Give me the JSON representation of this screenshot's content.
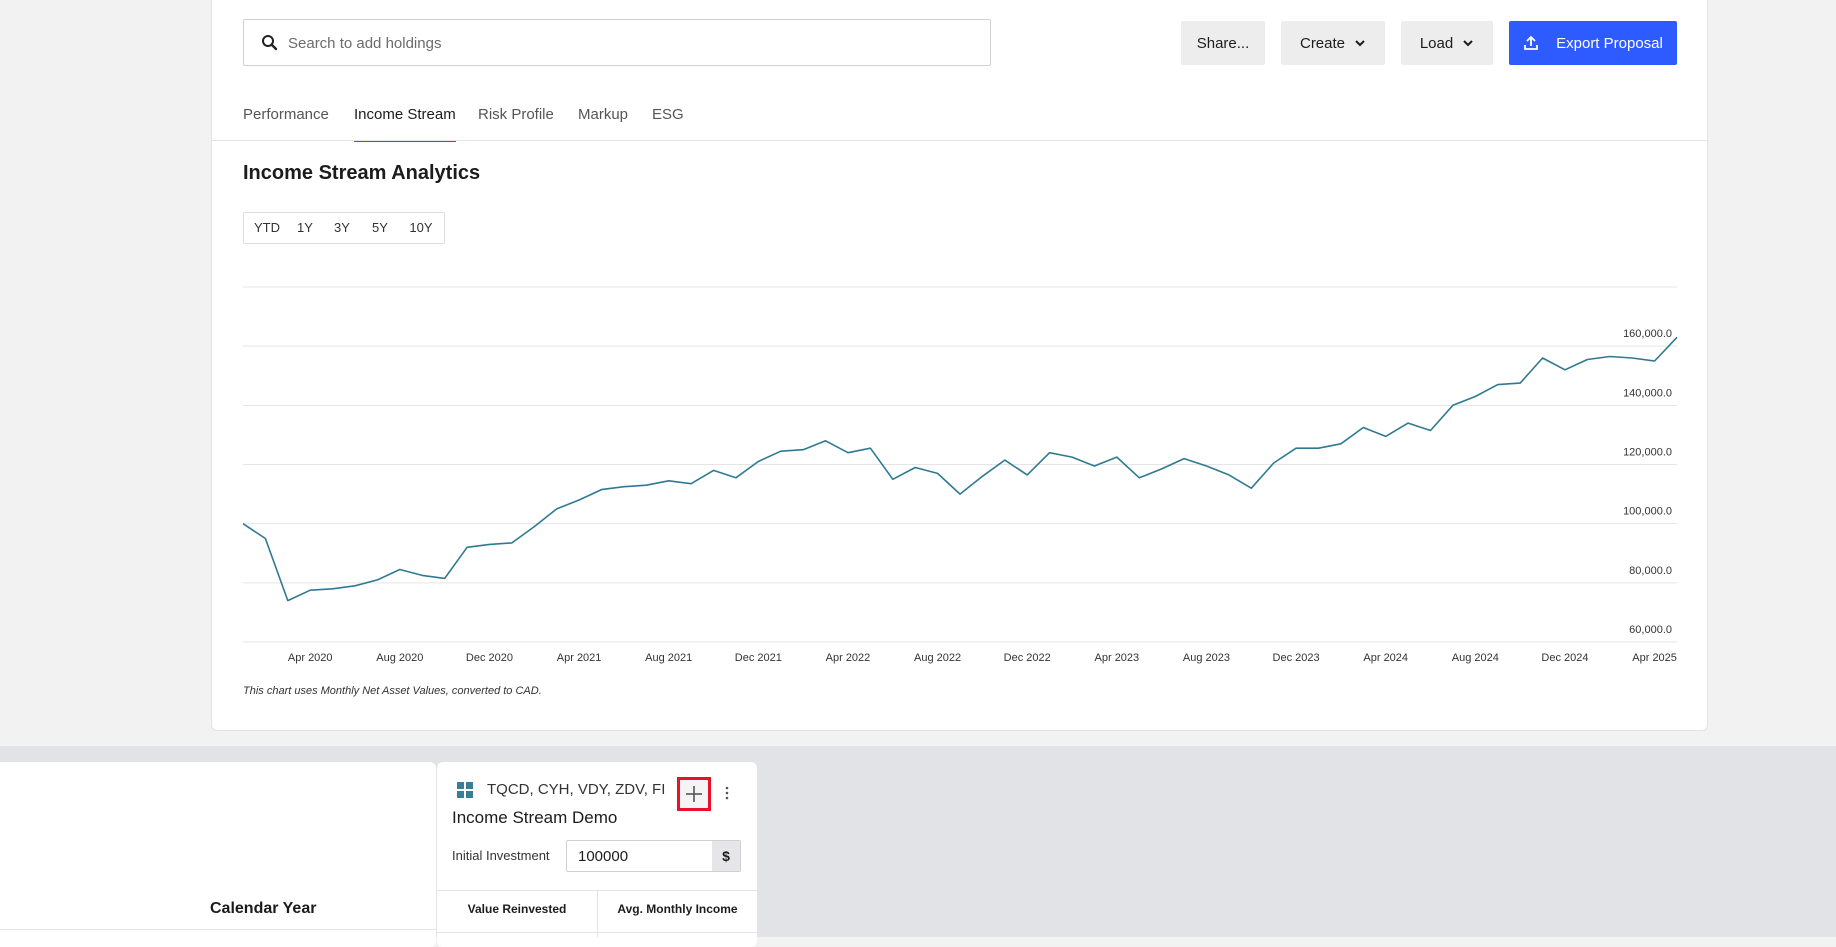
{
  "search": {
    "placeholder": "Search to add holdings",
    "value": ""
  },
  "toolbar": {
    "share_label": "Share...",
    "create_label": "Create",
    "load_label": "Load",
    "export_label": "Export Proposal"
  },
  "tabs": [
    {
      "label": "Performance",
      "active": false
    },
    {
      "label": "Income Stream",
      "active": true
    },
    {
      "label": "Risk Profile",
      "active": false
    },
    {
      "label": "Markup",
      "active": false
    },
    {
      "label": "ESG",
      "active": false
    }
  ],
  "section": {
    "title": "Income Stream Analytics"
  },
  "ranges": [
    "YTD",
    "1Y",
    "3Y",
    "5Y",
    "10Y"
  ],
  "chart_data": {
    "type": "line",
    "title": "",
    "xlabel": "",
    "ylabel": "",
    "line_color": "#2f7a90",
    "grid": true,
    "ylim": [
      60000,
      180000
    ],
    "y_ticks": [
      60000,
      80000,
      100000,
      120000,
      140000,
      160000
    ],
    "y_tick_labels": [
      "60,000.0",
      "80,000.0",
      "100,000.0",
      "120,000.0",
      "140,000.0",
      "160,000.0"
    ],
    "x_tick_labels": [
      "Apr 2020",
      "Aug 2020",
      "Dec 2020",
      "Apr 2021",
      "Aug 2021",
      "Dec 2021",
      "Apr 2022",
      "Aug 2022",
      "Dec 2022",
      "Apr 2023",
      "Aug 2023",
      "Dec 2023",
      "Apr 2024",
      "Aug 2024",
      "Dec 2024",
      "Apr 2025"
    ],
    "x_start": "2020-01",
    "x_end": "2025-05",
    "series": [
      {
        "name": "",
        "x": [
          "2020-01",
          "2020-02",
          "2020-03",
          "2020-04",
          "2020-05",
          "2020-06",
          "2020-07",
          "2020-08",
          "2020-09",
          "2020-10",
          "2020-11",
          "2020-12",
          "2021-01",
          "2021-02",
          "2021-03",
          "2021-04",
          "2021-05",
          "2021-06",
          "2021-07",
          "2021-08",
          "2021-09",
          "2021-10",
          "2021-11",
          "2021-12",
          "2022-01",
          "2022-02",
          "2022-03",
          "2022-04",
          "2022-05",
          "2022-06",
          "2022-07",
          "2022-08",
          "2022-09",
          "2022-10",
          "2022-11",
          "2022-12",
          "2023-01",
          "2023-02",
          "2023-03",
          "2023-04",
          "2023-05",
          "2023-06",
          "2023-07",
          "2023-08",
          "2023-09",
          "2023-10",
          "2023-11",
          "2023-12",
          "2024-01",
          "2024-02",
          "2024-03",
          "2024-04",
          "2024-05",
          "2024-06",
          "2024-07",
          "2024-08",
          "2024-09",
          "2024-10",
          "2024-11",
          "2024-12",
          "2025-01",
          "2025-02",
          "2025-03",
          "2025-04",
          "2025-05"
        ],
        "values": [
          100000,
          95000,
          74000,
          77500,
          78000,
          79000,
          81000,
          84500,
          82500,
          81500,
          92000,
          93000,
          93500,
          99000,
          105000,
          108000,
          111500,
          112500,
          113000,
          114500,
          113500,
          118000,
          115500,
          121000,
          124500,
          125000,
          128000,
          124000,
          125500,
          115000,
          119000,
          117000,
          110000,
          116000,
          121500,
          116500,
          124000,
          122500,
          119500,
          122500,
          115500,
          118500,
          122000,
          119500,
          116500,
          112000,
          120500,
          125500,
          125500,
          127000,
          132500,
          129500,
          134000,
          131500,
          140000,
          143000,
          147000,
          147500,
          156000,
          152000,
          155500,
          156500,
          156000,
          155000,
          163000
        ]
      }
    ]
  },
  "chart_note": "This chart uses Monthly Net Asset Values, converted to CAD.",
  "left_panel": {
    "column_title": "Calendar Year"
  },
  "right_panel": {
    "tickers": "TQCD, CYH, VDY, ZDV, FIE, PSB",
    "title": "Income Stream Demo",
    "initial_investment_label": "Initial Investment",
    "initial_investment_value": "100000",
    "currency_symbol": "$",
    "columns": [
      "Value Reinvested",
      "Avg. Monthly Income"
    ]
  },
  "colors": {
    "accent": "#2e5bff",
    "highlight_border": "#e8102a",
    "chart_line": "#2f7a90"
  },
  "icons": {
    "search": "search-icon",
    "chevron": "chevron-down-icon",
    "export": "upload-icon",
    "grid": "grid-icon",
    "add": "plus-icon",
    "more": "more-vertical-icon"
  }
}
